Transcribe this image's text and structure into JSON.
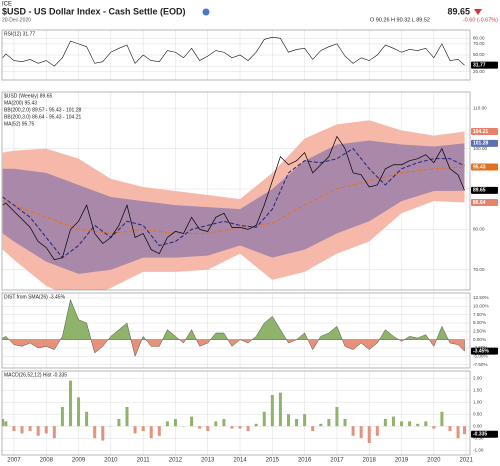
{
  "header": {
    "exchange": "ICE",
    "title": "$USD - US Dollar Index - Cash Settle (EOD)",
    "date": "20-Dec-2020",
    "last": "89.65",
    "change": "-0.60 (-0.67%)",
    "ohlc": "O 90.26 H 90.32 L 89.52",
    "credit": "© StockCharts.com"
  },
  "x_axis": {
    "xlim": [
      2006.63,
      2021.12
    ],
    "xticks": [
      2007,
      2008,
      2009,
      2010,
      2011,
      2012,
      2013,
      2014,
      2015,
      2016,
      2017,
      2018,
      2019,
      2020,
      2021
    ]
  },
  "chart_data": [
    {
      "type": "line",
      "legend": [
        "RSI(12) 31.77"
      ],
      "ylim": [
        5,
        95
      ],
      "yticks": [
        {
          "value": 80,
          "label": "80.00"
        },
        {
          "value": 70,
          "label": "70.00"
        },
        {
          "value": 50,
          "label": "50.00"
        },
        {
          "value": 30,
          "label": "30.00"
        },
        {
          "value": 20,
          "label": "20.00"
        }
      ],
      "x": [
        2006.65,
        2006.75,
        2007,
        2007.25,
        2007.5,
        2007.75,
        2008,
        2008.25,
        2008.5,
        2008.75,
        2009,
        2009.25,
        2009.5,
        2009.75,
        2010,
        2010.25,
        2010.5,
        2010.75,
        2011,
        2011.25,
        2011.5,
        2011.75,
        2012,
        2012.25,
        2012.5,
        2012.75,
        2013,
        2013.25,
        2013.5,
        2013.75,
        2014,
        2014.25,
        2014.5,
        2014.75,
        2015,
        2015.25,
        2015.5,
        2015.75,
        2016,
        2016.25,
        2016.5,
        2016.75,
        2017,
        2017.25,
        2017.5,
        2017.75,
        2018,
        2018.25,
        2018.5,
        2018.75,
        2019,
        2019.25,
        2019.5,
        2019.75,
        2020,
        2020.25,
        2020.5,
        2020.75,
        2020.95
      ],
      "series": [
        {
          "color": "#111111",
          "boxed": true,
          "values": [
            45,
            52,
            40,
            38,
            42,
            35,
            40,
            30,
            45,
            75,
            70,
            65,
            35,
            38,
            55,
            62,
            68,
            35,
            50,
            40,
            38,
            58,
            55,
            45,
            62,
            40,
            48,
            58,
            55,
            45,
            50,
            40,
            55,
            78,
            82,
            80,
            55,
            60,
            62,
            42,
            58,
            65,
            70,
            48,
            35,
            45,
            40,
            50,
            68,
            62,
            55,
            60,
            58,
            62,
            45,
            70,
            40,
            42,
            31.77
          ]
        }
      ]
    },
    {
      "type": "bands",
      "legend": [
        "$USD (Weekly) 89.65",
        "MA(200) 95.43",
        "BB(200,2.0) 89.57 - 95.43 - 101.28",
        "BB(200,3.0) 86.64 - 95.43 - 104.21",
        "MA(52) 95.75"
      ],
      "ylim": [
        65,
        114
      ],
      "yticks": [
        {
          "value": 110,
          "label": "110.00"
        },
        {
          "value": 100,
          "label": "100.00"
        },
        {
          "value": 90,
          "label": "90.00"
        },
        {
          "value": 80,
          "label": "80.00"
        },
        {
          "value": 70,
          "label": "70.00"
        }
      ],
      "bands": [
        {
          "color": "#f6b9a9",
          "boxed_edges": [
            "upper",
            "lower"
          ],
          "x": [
            2006.65,
            2007,
            2008,
            2009,
            2010,
            2011,
            2012,
            2013,
            2014,
            2015,
            2016,
            2017,
            2018,
            2019,
            2020,
            2020.95
          ],
          "upper": [
            99,
            99.5,
            100,
            97.5,
            92.5,
            90.5,
            89.5,
            88.5,
            87.5,
            94,
            102.5,
            106,
            107,
            104.5,
            103.2,
            104.21
          ],
          "lower": [
            75,
            72.5,
            66,
            62.5,
            65.5,
            69.5,
            69.5,
            70,
            74,
            67.5,
            69.5,
            74,
            77,
            84,
            87,
            86.64
          ]
        },
        {
          "color": "#8f78aa",
          "boxed_edges": [
            "upper"
          ],
          "x": [
            2006.65,
            2007,
            2008,
            2009,
            2010,
            2011,
            2012,
            2013,
            2014,
            2015,
            2016,
            2017,
            2018,
            2019,
            2020,
            2020.95
          ],
          "upper": [
            95,
            95,
            94,
            91,
            88,
            87,
            86,
            85.5,
            85,
            90,
            97,
            101,
            102,
            101,
            100.5,
            101.28
          ],
          "lower": [
            79,
            77,
            72,
            69,
            70,
            73,
            73,
            73.5,
            76,
            73,
            75,
            79,
            82,
            87,
            89.5,
            89.57
          ]
        }
      ],
      "series": [
        {
          "color": "#e27222",
          "dash": true,
          "boxed": true,
          "x": [
            2006.65,
            2007,
            2008,
            2009,
            2010,
            2011,
            2012,
            2013,
            2014,
            2015,
            2016,
            2017,
            2018,
            2019,
            2020,
            2020.95
          ],
          "values": [
            87,
            86,
            83,
            80,
            79,
            80,
            79,
            79,
            80.5,
            81.5,
            86,
            90,
            92,
            94,
            95,
            95.43
          ]
        },
        {
          "color": "#26267a",
          "dash": true,
          "x": [
            2006.65,
            2007,
            2007.5,
            2008,
            2008.5,
            2009,
            2009.5,
            2010,
            2010.5,
            2011,
            2011.5,
            2012,
            2012.5,
            2013,
            2013.5,
            2014,
            2014.5,
            2015,
            2015.5,
            2016,
            2016.5,
            2017,
            2017.5,
            2018,
            2018.5,
            2019,
            2019.5,
            2020,
            2020.5,
            2020.95
          ],
          "values": [
            88,
            86,
            83,
            78,
            73,
            76,
            81,
            78,
            82,
            81,
            76,
            77,
            80,
            81,
            82,
            81,
            80.5,
            85,
            94,
            97,
            96.5,
            97.5,
            100,
            95,
            91,
            95,
            96.5,
            97.5,
            97.5,
            95.75
          ]
        },
        {
          "color": "#000000",
          "boxed": true,
          "x": [
            2006.65,
            2006.75,
            2007,
            2007.25,
            2007.5,
            2007.75,
            2008,
            2008.25,
            2008.5,
            2008.75,
            2009,
            2009.25,
            2009.5,
            2009.75,
            2010,
            2010.25,
            2010.5,
            2010.75,
            2011,
            2011.25,
            2011.5,
            2011.75,
            2012,
            2012.25,
            2012.5,
            2012.75,
            2013,
            2013.25,
            2013.5,
            2013.75,
            2014,
            2014.25,
            2014.5,
            2014.75,
            2015,
            2015.25,
            2015.5,
            2015.75,
            2016,
            2016.25,
            2016.5,
            2016.75,
            2017,
            2017.25,
            2017.5,
            2017.75,
            2018,
            2018.25,
            2018.5,
            2018.75,
            2019,
            2019.25,
            2019.5,
            2019.75,
            2020,
            2020.25,
            2020.5,
            2020.75,
            2020.95
          ],
          "values": [
            86,
            86.5,
            84.5,
            82.5,
            80.5,
            77,
            75.5,
            72.5,
            73,
            80,
            82,
            86,
            79,
            76.5,
            78,
            81,
            86,
            78,
            79,
            75,
            74,
            78,
            79.5,
            79,
            83,
            80,
            79.5,
            83,
            84,
            80.5,
            80.5,
            80,
            81,
            86,
            92,
            98,
            96,
            97,
            99,
            94,
            96,
            98,
            103,
            100,
            94,
            93.5,
            90.5,
            91,
            95,
            96,
            96,
            97,
            97.5,
            98.5,
            96.5,
            100,
            95,
            93.5,
            89.65
          ]
        }
      ]
    },
    {
      "type": "area",
      "legend": [
        "DIST from SMA(26) -3.45%"
      ],
      "ylim": [
        -8.5,
        14
      ],
      "color_up": "#8fb36a",
      "color_down": "#e6917a",
      "yticks": [
        {
          "value": 12.5,
          "label": "12.50%"
        },
        {
          "value": 10,
          "label": "10.00%"
        },
        {
          "value": 7.5,
          "label": "7.50%"
        },
        {
          "value": 5,
          "label": "5.00%"
        },
        {
          "value": 2.5,
          "label": "2.50%"
        },
        {
          "value": 0,
          "label": "0.00%"
        },
        {
          "value": -2.5,
          "label": "-2.50%"
        },
        {
          "value": -5,
          "label": "-5.00%"
        },
        {
          "value": -7.5,
          "label": "-7.50%"
        }
      ],
      "x": [
        2006.65,
        2006.75,
        2007,
        2007.25,
        2007.5,
        2007.75,
        2008,
        2008.25,
        2008.5,
        2008.75,
        2009,
        2009.25,
        2009.5,
        2009.75,
        2010,
        2010.25,
        2010.5,
        2010.75,
        2011,
        2011.25,
        2011.5,
        2011.75,
        2012,
        2012.25,
        2012.5,
        2012.75,
        2013,
        2013.25,
        2013.5,
        2013.75,
        2014,
        2014.25,
        2014.5,
        2014.75,
        2015,
        2015.25,
        2015.5,
        2015.75,
        2016,
        2016.25,
        2016.5,
        2016.75,
        2017,
        2017.25,
        2017.5,
        2017.75,
        2018,
        2018.25,
        2018.5,
        2018.75,
        2019,
        2019.25,
        2019.5,
        2019.75,
        2020,
        2020.25,
        2020.5,
        2020.75,
        2020.95
      ],
      "values": [
        0.5,
        1,
        -1.5,
        -2,
        -1,
        -2.5,
        -2,
        -3,
        1,
        12,
        6,
        5,
        -4,
        -2,
        1,
        3,
        5,
        -5,
        1,
        -2,
        -2,
        3,
        1,
        -1,
        3,
        -2,
        -1,
        2,
        2,
        -2,
        0,
        -1,
        1,
        5,
        7,
        3,
        -1,
        0,
        2,
        -3,
        1,
        2,
        4,
        -2,
        -3,
        -1,
        -3,
        -1,
        3,
        1,
        -0.5,
        1,
        0.5,
        1.5,
        -2,
        4,
        -1,
        -1.5,
        -3.45
      ],
      "value_labels": [
        null,
        null,
        null,
        null,
        null,
        null,
        null,
        null,
        null,
        null,
        null,
        null,
        null,
        null,
        null,
        null,
        null,
        null,
        null,
        null,
        null,
        null,
        null,
        null,
        null,
        null,
        null,
        null,
        null,
        null,
        null,
        null,
        null,
        null,
        null,
        null,
        null,
        null,
        null,
        null,
        null,
        null,
        null,
        null,
        null,
        null,
        null,
        null,
        null,
        null,
        null,
        null,
        null,
        null,
        null,
        null,
        null,
        null,
        "-3.45%"
      ]
    },
    {
      "type": "bar",
      "legend": [
        "MACD(26,52,12) Hist -0.335"
      ],
      "ylim": [
        -1.2,
        2.3
      ],
      "color_up": "#8fb36a",
      "color_down": "#e6917a",
      "yticks": [
        {
          "value": 2,
          "label": "2.00"
        },
        {
          "value": 1.5,
          "label": "1.50"
        },
        {
          "value": 1,
          "label": "1.00"
        },
        {
          "value": 0.5,
          "label": "0.50"
        },
        {
          "value": 0,
          "label": "0.00"
        },
        {
          "value": -0.5,
          "label": "-0.50"
        },
        {
          "value": -1,
          "label": "-1.00"
        }
      ],
      "x": [
        2006.65,
        2006.75,
        2007,
        2007.25,
        2007.5,
        2007.75,
        2008,
        2008.25,
        2008.5,
        2008.75,
        2009,
        2009.25,
        2009.5,
        2009.75,
        2010,
        2010.25,
        2010.5,
        2010.75,
        2011,
        2011.25,
        2011.5,
        2011.75,
        2012,
        2012.25,
        2012.5,
        2012.75,
        2013,
        2013.25,
        2013.5,
        2013.75,
        2014,
        2014.25,
        2014.5,
        2014.75,
        2015,
        2015.25,
        2015.5,
        2015.75,
        2016,
        2016.25,
        2016.5,
        2016.75,
        2017,
        2017.25,
        2017.5,
        2017.75,
        2018,
        2018.25,
        2018.5,
        2018.75,
        2019,
        2019.25,
        2019.5,
        2019.75,
        2020,
        2020.25,
        2020.5,
        2020.75,
        2020.95
      ],
      "values": [
        0.3,
        0.2,
        -0.2,
        -0.3,
        -0.2,
        -0.4,
        -0.3,
        -0.5,
        0.8,
        1.9,
        1.2,
        0.6,
        -0.5,
        -0.6,
        0,
        0.3,
        0.8,
        -0.3,
        -0.2,
        -0.5,
        -0.4,
        0.2,
        0.3,
        0,
        0.4,
        -0.1,
        -0.2,
        0.2,
        0.3,
        -0.1,
        -0.1,
        -0.2,
        0.1,
        0.6,
        1.3,
        1.4,
        0.5,
        0.3,
        0.5,
        -0.2,
        0.1,
        0.3,
        0.8,
        0.3,
        -0.4,
        -0.5,
        -0.7,
        -0.4,
        0.3,
        0.4,
        0.2,
        0.2,
        0.1,
        0.2,
        -0.1,
        0.6,
        -0.2,
        -0.5,
        -0.335
      ]
    }
  ]
}
